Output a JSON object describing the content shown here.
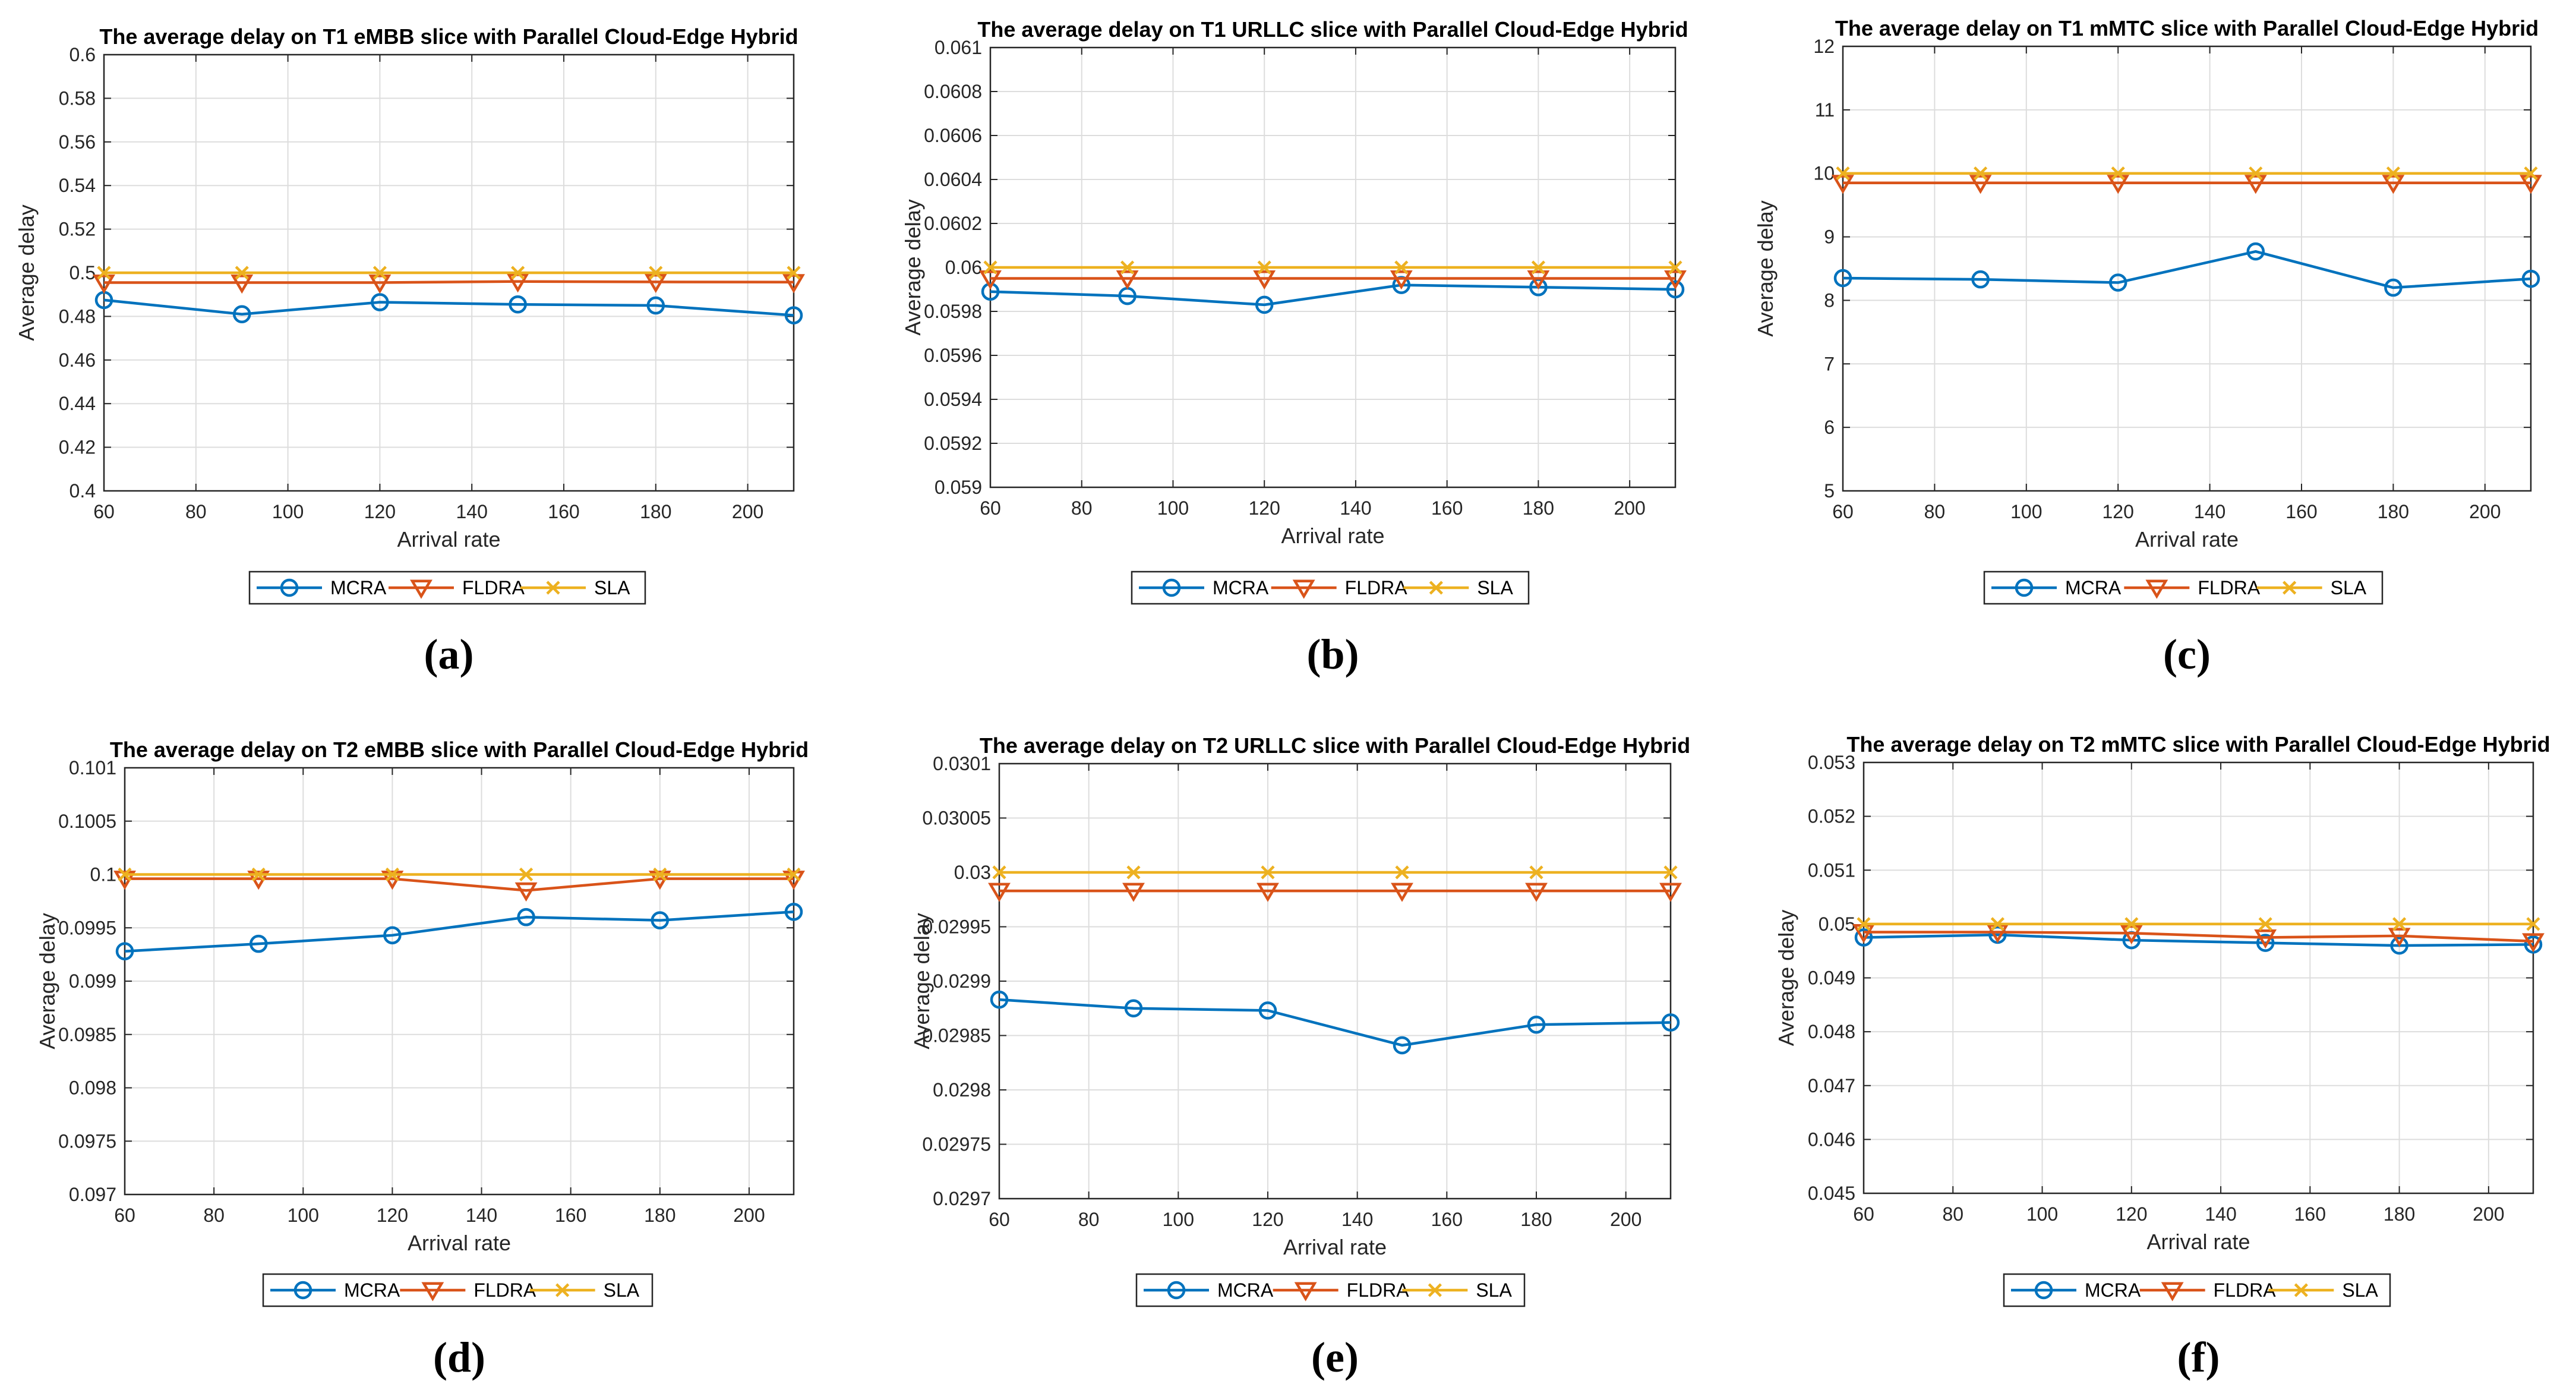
{
  "colors": {
    "MCRA": "#0072BD",
    "FLDRA": "#D95319",
    "SLA": "#EDB120",
    "grid": "#DDDDDD",
    "axis": "#262626"
  },
  "chart_data": [
    {
      "type": "line",
      "label": "(a)",
      "title": "The average delay on T1 eMBB slice with Parallel Cloud-Edge Hybrid",
      "xlabel": "Arrival rate",
      "ylabel": "Average delay",
      "x": [
        60,
        90,
        120,
        150,
        180,
        210
      ],
      "xlim": [
        60,
        210
      ],
      "xticks": [
        60,
        80,
        100,
        120,
        140,
        160,
        180,
        200
      ],
      "xtick_labels": [
        "60",
        "80",
        "100",
        "120",
        "140",
        "160",
        "180",
        "200"
      ],
      "ylim": [
        0.4,
        0.6
      ],
      "yticks": [
        0.4,
        0.42,
        0.44,
        0.46,
        0.48,
        0.5,
        0.52,
        0.54,
        0.56,
        0.58,
        0.6
      ],
      "ytick_labels": [
        "0.4",
        "0.42",
        "0.44",
        "0.46",
        "0.48",
        "0.5",
        "0.52",
        "0.54",
        "0.56",
        "0.58",
        "0.6"
      ],
      "grid": true,
      "legend_position": "bottom",
      "series": [
        {
          "name": "MCRA",
          "marker": "circle",
          "values": [
            0.4875,
            0.481,
            0.4865,
            0.4855,
            0.485,
            0.4805
          ]
        },
        {
          "name": "FLDRA",
          "marker": "triangle-down",
          "values": [
            0.4955,
            0.4955,
            0.4955,
            0.496,
            0.4958,
            0.4957
          ]
        },
        {
          "name": "SLA",
          "marker": "x",
          "values": [
            0.5,
            0.5,
            0.5,
            0.5,
            0.5,
            0.5
          ]
        }
      ]
    },
    {
      "type": "line",
      "label": "(b)",
      "title": "The average delay on T1 URLLC slice with Parallel Cloud-Edge Hybrid",
      "xlabel": "Arrival rate",
      "ylabel": "Average delay",
      "x": [
        60,
        90,
        120,
        150,
        180,
        210
      ],
      "xlim": [
        60,
        210
      ],
      "xticks": [
        60,
        80,
        100,
        120,
        140,
        160,
        180,
        200
      ],
      "xtick_labels": [
        "60",
        "80",
        "100",
        "120",
        "140",
        "160",
        "180",
        "200"
      ],
      "ylim": [
        0.059,
        0.061
      ],
      "yticks": [
        0.059,
        0.0592,
        0.0594,
        0.0596,
        0.0598,
        0.06,
        0.0602,
        0.0604,
        0.0606,
        0.0608,
        0.061
      ],
      "ytick_labels": [
        "0.059",
        "0.0592",
        "0.0594",
        "0.0596",
        "0.0598",
        "0.06",
        "0.0602",
        "0.0604",
        "0.0606",
        "0.0608",
        "0.061"
      ],
      "grid": true,
      "legend_position": "bottom",
      "series": [
        {
          "name": "MCRA",
          "marker": "circle",
          "values": [
            0.05989,
            0.05987,
            0.05983,
            0.05992,
            0.05991,
            0.0599
          ]
        },
        {
          "name": "FLDRA",
          "marker": "triangle-down",
          "values": [
            0.05995,
            0.05995,
            0.05995,
            0.05995,
            0.05995,
            0.05995
          ]
        },
        {
          "name": "SLA",
          "marker": "x",
          "values": [
            0.06,
            0.06,
            0.06,
            0.06,
            0.06,
            0.06
          ]
        }
      ]
    },
    {
      "type": "line",
      "label": "(c)",
      "title": "The average delay on T1 mMTC slice with Parallel Cloud-Edge Hybrid",
      "xlabel": "Arrival rate",
      "ylabel": "Average delay",
      "x": [
        60,
        90,
        120,
        150,
        180,
        210
      ],
      "xlim": [
        60,
        210
      ],
      "xticks": [
        60,
        80,
        100,
        120,
        140,
        160,
        180,
        200
      ],
      "xtick_labels": [
        "60",
        "80",
        "100",
        "120",
        "140",
        "160",
        "180",
        "200"
      ],
      "ylim": [
        5,
        12
      ],
      "yticks": [
        5,
        6,
        7,
        8,
        9,
        10,
        11,
        12
      ],
      "ytick_labels": [
        "5",
        "6",
        "7",
        "8",
        "9",
        "10",
        "11",
        "12"
      ],
      "grid": true,
      "legend_position": "bottom",
      "series": [
        {
          "name": "MCRA",
          "marker": "circle",
          "values": [
            8.35,
            8.33,
            8.28,
            8.77,
            8.2,
            8.34
          ]
        },
        {
          "name": "FLDRA",
          "marker": "triangle-down",
          "values": [
            9.85,
            9.85,
            9.85,
            9.85,
            9.85,
            9.85
          ]
        },
        {
          "name": "SLA",
          "marker": "x",
          "values": [
            10,
            10,
            10,
            10,
            10,
            10
          ]
        }
      ]
    },
    {
      "type": "line",
      "label": "(d)",
      "title": "The average delay on T2 eMBB slice with Parallel Cloud-Edge Hybrid",
      "xlabel": "Arrival rate",
      "ylabel": "Average delay",
      "x": [
        60,
        90,
        120,
        150,
        180,
        210
      ],
      "xlim": [
        60,
        210
      ],
      "xticks": [
        60,
        80,
        100,
        120,
        140,
        160,
        180,
        200
      ],
      "xtick_labels": [
        "60",
        "80",
        "100",
        "120",
        "140",
        "160",
        "180",
        "200"
      ],
      "ylim": [
        0.097,
        0.101
      ],
      "yticks": [
        0.097,
        0.0975,
        0.098,
        0.0985,
        0.099,
        0.0995,
        0.1,
        0.1005,
        0.101
      ],
      "ytick_labels": [
        "0.097",
        "0.0975",
        "0.098",
        "0.0985",
        "0.099",
        "0.0995",
        "0.1",
        "0.1005",
        "0.101"
      ],
      "grid": true,
      "legend_position": "bottom",
      "series": [
        {
          "name": "MCRA",
          "marker": "circle",
          "values": [
            0.09928,
            0.09935,
            0.09943,
            0.0996,
            0.09957,
            0.09965
          ]
        },
        {
          "name": "FLDRA",
          "marker": "triangle-down",
          "values": [
            0.09996,
            0.09996,
            0.09996,
            0.09985,
            0.09996,
            0.09996
          ]
        },
        {
          "name": "SLA",
          "marker": "x",
          "values": [
            0.1,
            0.1,
            0.1,
            0.1,
            0.1,
            0.1
          ]
        }
      ]
    },
    {
      "type": "line",
      "label": "(e)",
      "title": "The average delay on T2 URLLC slice with Parallel Cloud-Edge Hybrid",
      "xlabel": "Arrival rate",
      "ylabel": "Average delay",
      "x": [
        60,
        90,
        120,
        150,
        180,
        210
      ],
      "xlim": [
        60,
        210
      ],
      "xticks": [
        60,
        80,
        100,
        120,
        140,
        160,
        180,
        200
      ],
      "xtick_labels": [
        "60",
        "80",
        "100",
        "120",
        "140",
        "160",
        "180",
        "200"
      ],
      "ylim": [
        0.0297,
        0.0301
      ],
      "yticks": [
        0.0297,
        0.02975,
        0.0298,
        0.02985,
        0.0299,
        0.02995,
        0.03,
        0.03005,
        0.0301
      ],
      "ytick_labels": [
        "0.0297",
        "0.02975",
        "0.0298",
        "0.02985",
        "0.0299",
        "0.02995",
        "0.03",
        "0.03005",
        "0.0301"
      ],
      "grid": true,
      "legend_position": "bottom",
      "series": [
        {
          "name": "MCRA",
          "marker": "circle",
          "values": [
            0.029883,
            0.029875,
            0.029873,
            0.029841,
            0.02986,
            0.029862
          ]
        },
        {
          "name": "FLDRA",
          "marker": "triangle-down",
          "values": [
            0.029983,
            0.029983,
            0.029983,
            0.029983,
            0.029983,
            0.029983
          ]
        },
        {
          "name": "SLA",
          "marker": "x",
          "values": [
            0.03,
            0.03,
            0.03,
            0.03,
            0.03,
            0.03
          ]
        }
      ]
    },
    {
      "type": "line",
      "label": "(f)",
      "title": "The average delay on T2 mMTC slice with Parallel Cloud-Edge Hybrid",
      "xlabel": "Arrival rate",
      "ylabel": "Average delay",
      "x": [
        60,
        90,
        120,
        150,
        180,
        210
      ],
      "xlim": [
        60,
        210
      ],
      "xticks": [
        60,
        80,
        100,
        120,
        140,
        160,
        180,
        200
      ],
      "xtick_labels": [
        "60",
        "80",
        "100",
        "120",
        "140",
        "160",
        "180",
        "200"
      ],
      "ylim": [
        0.045,
        0.053
      ],
      "yticks": [
        0.045,
        0.046,
        0.047,
        0.048,
        0.049,
        0.05,
        0.051,
        0.052,
        0.053
      ],
      "ytick_labels": [
        "0.045",
        "0.046",
        "0.047",
        "0.048",
        "0.049",
        "0.05",
        "0.051",
        "0.052",
        "0.053"
      ],
      "grid": true,
      "legend_position": "bottom",
      "series": [
        {
          "name": "MCRA",
          "marker": "circle",
          "values": [
            0.04975,
            0.0498,
            0.0497,
            0.04965,
            0.0496,
            0.04962
          ]
        },
        {
          "name": "FLDRA",
          "marker": "triangle-down",
          "values": [
            0.04985,
            0.04985,
            0.04983,
            0.04975,
            0.04978,
            0.04968
          ]
        },
        {
          "name": "SLA",
          "marker": "x",
          "values": [
            0.05,
            0.05,
            0.05,
            0.05,
            0.05,
            0.05
          ]
        }
      ]
    }
  ]
}
